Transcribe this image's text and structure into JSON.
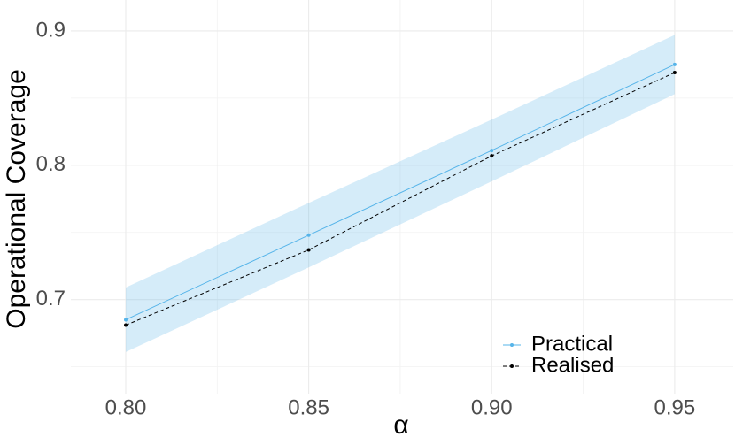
{
  "chart_data": {
    "type": "line",
    "x": [
      0.8,
      0.85,
      0.9,
      0.95
    ],
    "xlabel": "α",
    "ylabel": "Operational Coverage",
    "xlim": [
      0.785,
      0.966
    ],
    "ylim": [
      0.63,
      0.923
    ],
    "xticks": [
      {
        "value": 0.8,
        "label": "0.80"
      },
      {
        "value": 0.85,
        "label": "0.85"
      },
      {
        "value": 0.9,
        "label": "0.90"
      },
      {
        "value": 0.95,
        "label": "0.95"
      }
    ],
    "yticks": [
      0.7,
      0.8,
      0.9
    ],
    "x_minor_grid": [
      0.825,
      0.875,
      0.925
    ],
    "y_minor_grid": [
      0.65,
      0.75,
      0.85
    ],
    "grid": true,
    "band": {
      "color": "#56b4e9",
      "lower": [
        0.661,
        0.724,
        0.788,
        0.853
      ],
      "upper": [
        0.709,
        0.772,
        0.834,
        0.897
      ]
    },
    "series": [
      {
        "name": "Practical",
        "color": "#56b4e9",
        "dash": false,
        "values": [
          0.685,
          0.748,
          0.811,
          0.875
        ]
      },
      {
        "name": "Realised",
        "color": "#000000",
        "dash": true,
        "values": [
          0.681,
          0.737,
          0.807,
          0.869
        ]
      }
    ],
    "legend": "bottom-right"
  }
}
